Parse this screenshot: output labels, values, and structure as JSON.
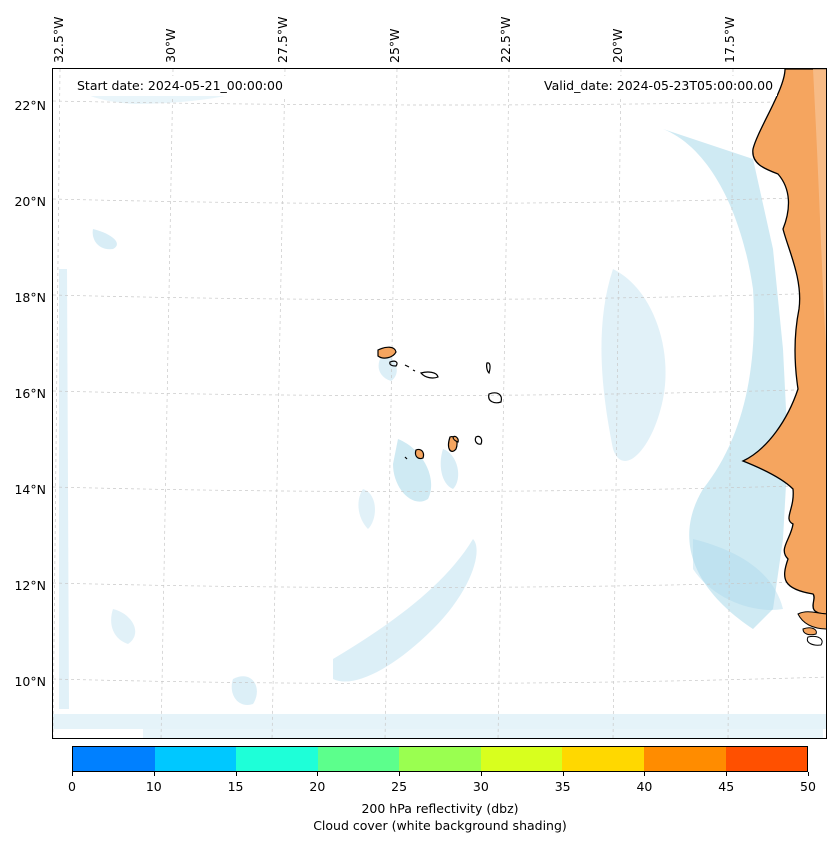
{
  "map": {
    "start_date": "Start date: 2024-05-21_00:00:00",
    "valid_date": "Valid_date: 2024-05-23T05:00:00.00",
    "lon_labels": [
      "32.5°W",
      "30°W",
      "27.5°W",
      "25°W",
      "22.5°W",
      "20°W",
      "17.5°W"
    ],
    "lat_labels": [
      "22°N",
      "20°N",
      "18°N",
      "16°N",
      "14°N",
      "12°N",
      "10°N"
    ],
    "land_color": "#f5a55f",
    "cloud_color": "#a8d8ea",
    "coast_color": "#000000"
  },
  "colorbar": {
    "title": "200 hPa reflectivity (dbz)",
    "subtitle": "Cloud cover (white background shading)",
    "ticks": [
      "0",
      "10",
      "15",
      "20",
      "25",
      "30",
      "35",
      "40",
      "45",
      "50"
    ],
    "colors": [
      "#0080ff",
      "#00c8ff",
      "#1effd8",
      "#5cff8c",
      "#9aff50",
      "#d8ff1e",
      "#ffd800",
      "#ff8c00",
      "#ff5000"
    ]
  }
}
